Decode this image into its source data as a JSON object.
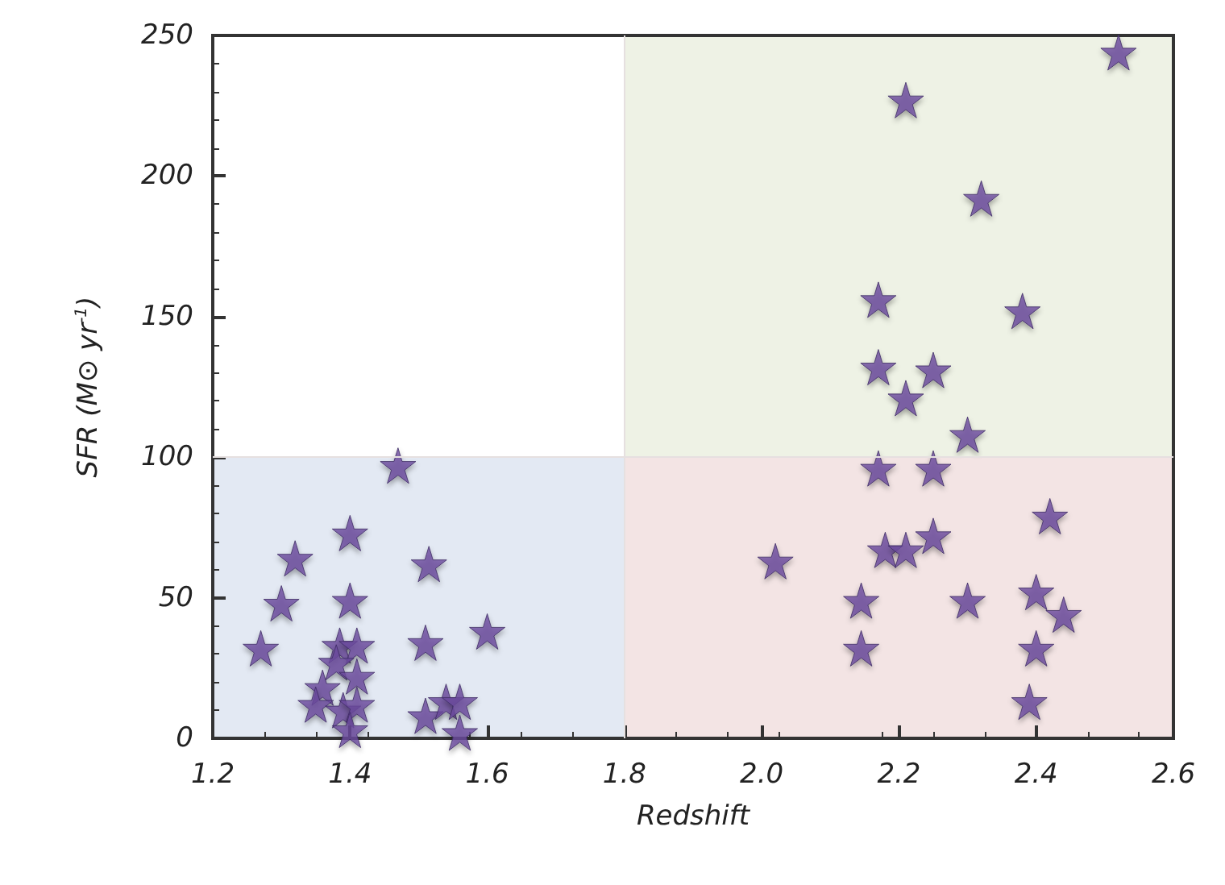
{
  "chart_data": {
    "type": "scatter",
    "xlabel": "Redshift",
    "ylabel": "SFR (M⊙ yr$^{-1}$)",
    "marker": "star",
    "grid": false,
    "xlim": [
      1.2,
      2.6
    ],
    "xticks": [
      1.2,
      1.4,
      1.6,
      1.8,
      {
        "value": 2,
        "label": "2.0"
      },
      2.2,
      2.4,
      2.6
    ],
    "ylim": [
      0,
      250
    ],
    "yticks": [
      0,
      50,
      100,
      150,
      200,
      250
    ],
    "ref_lines": [
      {
        "axis": "x",
        "value": 1.8,
        "color": "#e6e0e0"
      },
      {
        "axis": "y",
        "value": 100,
        "color": "#e6e0e0"
      }
    ],
    "series": [
      {
        "color": "#6a4a9e",
        "x": [
          1.47,
          1.4,
          1.32,
          1.515,
          1.3,
          1.4,
          1.27,
          1.51,
          1.6,
          1.385,
          1.41,
          1.38,
          1.41,
          1.36,
          1.35,
          1.39,
          1.41,
          1.4,
          1.51,
          1.54,
          1.56,
          1.56,
          2.17,
          2.25,
          2.02,
          2.18,
          2.21,
          2.25,
          2.42,
          2.145,
          2.3,
          2.4,
          2.44,
          2.145,
          2.4,
          2.39,
          2.3,
          2.52,
          2.21,
          2.32,
          2.17,
          2.38,
          2.17,
          2.25,
          2.21
        ],
        "values": [
          97,
          73,
          64,
          62,
          48,
          49,
          32,
          34,
          38,
          33,
          33,
          27,
          22,
          18,
          12,
          10,
          12,
          3,
          8,
          13,
          13,
          2,
          96,
          96,
          63,
          67,
          67,
          72,
          79,
          49,
          49,
          52,
          44,
          32,
          32,
          13,
          108,
          244,
          227,
          192,
          156,
          152,
          132,
          131,
          121
        ]
      }
    ]
  }
}
